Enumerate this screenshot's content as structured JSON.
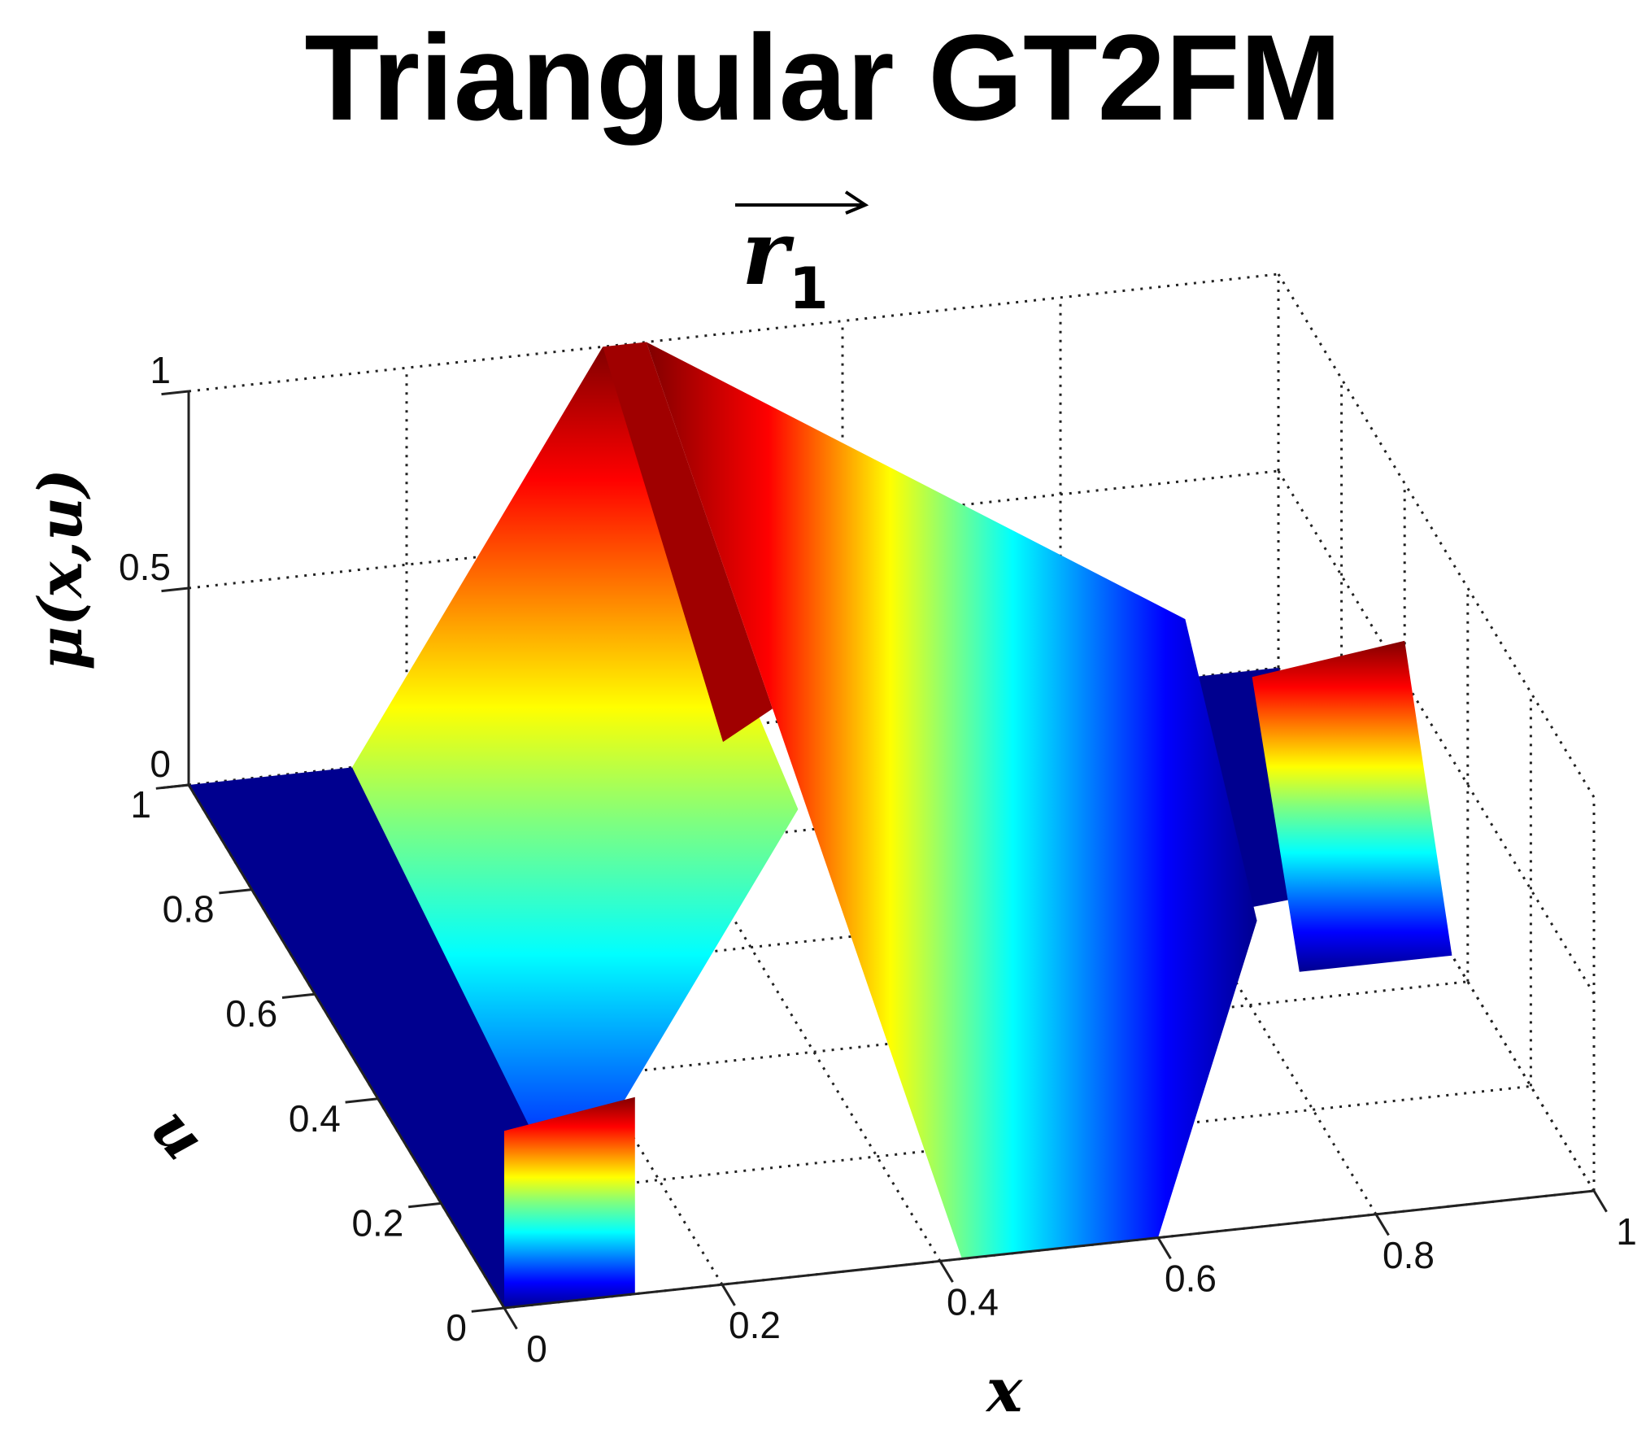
{
  "chart_data": {
    "type": "surface",
    "title": "Triangular GT2FM",
    "subtitle": "r",
    "subtitle_subscript": "1",
    "xlabel": "x",
    "ylabel": "u",
    "zlabel": "μ(x,u)",
    "xlim": [
      0,
      1
    ],
    "ylim": [
      0,
      1
    ],
    "zlim": [
      0,
      1
    ],
    "x_ticks": [
      "0",
      "0.2",
      "0.4",
      "0.6",
      "0.8",
      "1"
    ],
    "y_ticks": [
      "0",
      "0.2",
      "0.4",
      "0.6",
      "0.8",
      "1"
    ],
    "z_ticks": [
      "0",
      "0.5",
      "1"
    ],
    "colormap": "jet",
    "grid": true,
    "surface_profile": {
      "apex_x": 0.4,
      "apex_u": 1.0,
      "peak_membership": 1.0,
      "secondary_triangle": {
        "left_x": 0.25,
        "center_x": 0.4,
        "right_x": 0.9
      }
    }
  },
  "colors": {
    "low": "#00008f",
    "mid": "#00ffff",
    "high": "#ffff00",
    "top": "#800000"
  }
}
